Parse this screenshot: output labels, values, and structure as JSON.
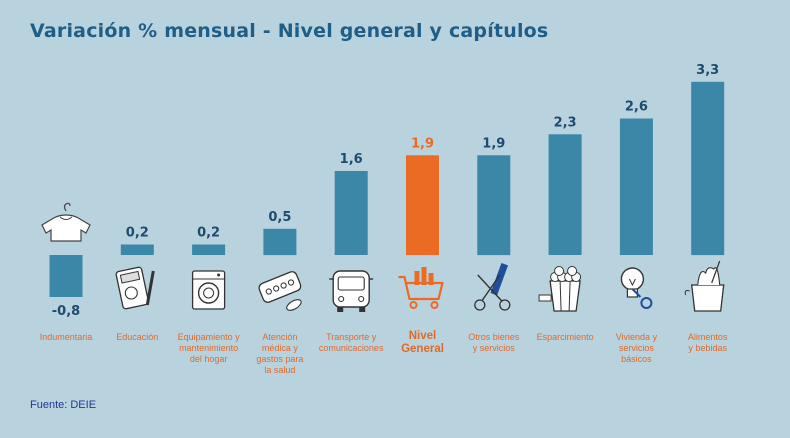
{
  "title": "Variación % mensual - Nivel general y capítulos",
  "source": "Fuente: DEIE",
  "chart_data": {
    "type": "bar",
    "categories": [
      "Indumentaria",
      "Educación",
      "Equipamiento y mantenimiento del hogar",
      "Atención médica y gastos para la salud",
      "Transporte y comunicaciones",
      "Nivel General",
      "Otros bienes y servicios",
      "Esparcimiento",
      "Vivienda y servicios básicos",
      "Alimentos y bebidas"
    ],
    "category_lines": [
      "Indumentaria",
      "Educación",
      "Equipamiento y\nmantenimiento\ndel hogar",
      "Atención\nmédica y\ngastos para\nla salud",
      "Transporte y\ncomunicaciones",
      "Nivel\nGeneral",
      "Otros bienes\ny servicios",
      "Esparcimiento",
      "Vivienda y\nservicios\nbásicos",
      "Alimentos\ny bebidas"
    ],
    "values": [
      -0.8,
      0.2,
      0.2,
      0.5,
      1.6,
      1.9,
      1.9,
      2.3,
      2.6,
      3.3
    ],
    "value_labels": [
      "-0,8",
      "0,2",
      "0,2",
      "0,5",
      "1,6",
      "1,9",
      "1,9",
      "2,3",
      "2,6",
      "3,3"
    ],
    "highlight": "Nivel General",
    "icons": [
      "shirt-icon",
      "calculator-icon",
      "washing-machine-icon",
      "pills-icon",
      "bus-icon",
      "shopping-cart-icon",
      "scissors-comb-icon",
      "popcorn-icon",
      "lightbulb-key-icon",
      "grocery-bag-icon"
    ],
    "colors": {
      "bar": "#3a87a8",
      "highlight": "#ec6b24",
      "value_text": "#1e4b6e",
      "label_text": "#e0692a"
    },
    "xlabel": "",
    "ylabel": "",
    "grid": false,
    "legend": "none"
  }
}
